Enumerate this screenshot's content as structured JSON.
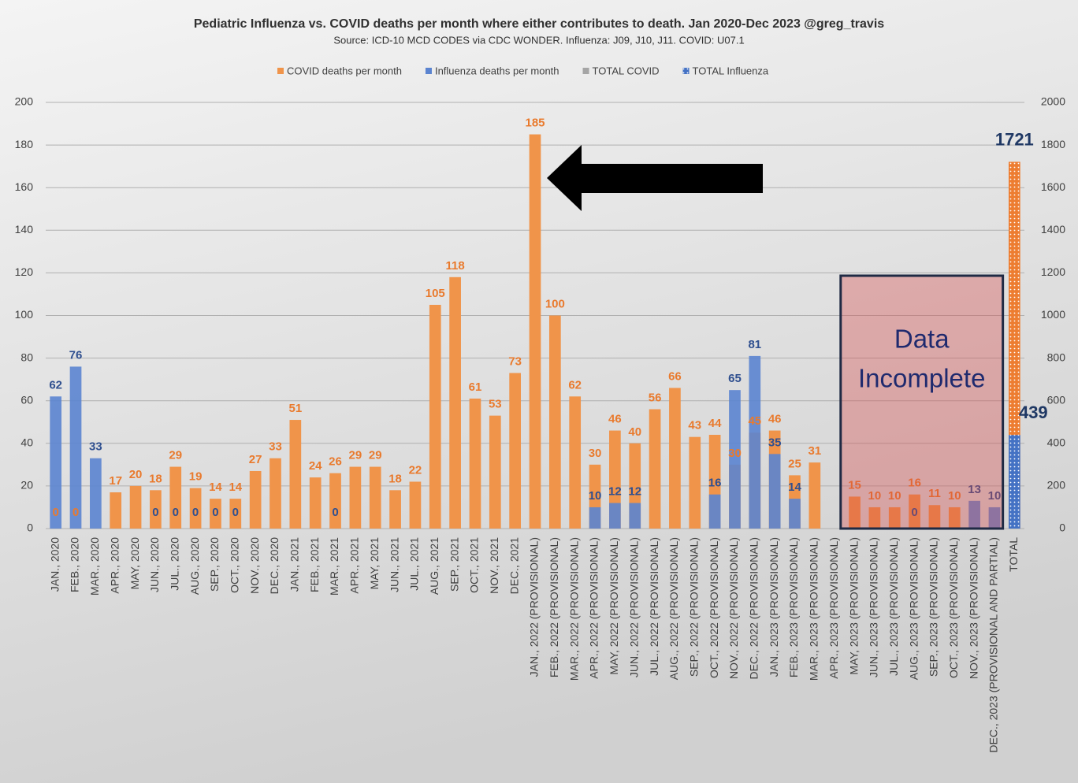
{
  "chart_data": {
    "type": "bar",
    "title": "Pediatric Influenza vs. COVID deaths per month where either contributes to death.  Jan 2020-Dec 2023 @greg_travis",
    "subtitle": "Source: ICD-10 MCD CODES via CDC WONDER.  Influenza: J09, J10, J11.  COVID: U07.1",
    "annotation": [
      "Data",
      "Incomplete"
    ],
    "categories": [
      "JAN., 2020",
      "FEB., 2020",
      "MAR., 2020",
      "APR., 2020",
      "MAY, 2020",
      "JUN., 2020",
      "JUL., 2020",
      "AUG., 2020",
      "SEP., 2020",
      "OCT., 2020",
      "NOV., 2020",
      "DEC., 2020",
      "JAN., 2021",
      "FEB., 2021",
      "MAR., 2021",
      "APR., 2021",
      "MAY, 2021",
      "JUN., 2021",
      "JUL., 2021",
      "AUG., 2021",
      "SEP., 2021",
      "OCT., 2021",
      "NOV., 2021",
      "DEC., 2021",
      "JAN., 2022 (PROVISIONAL)",
      "FEB., 2022 (PROVISIONAL)",
      "MAR., 2022 (PROVISIONAL)",
      "APR., 2022 (PROVISIONAL)",
      "MAY, 2022 (PROVISIONAL)",
      "JUN., 2022 (PROVISIONAL)",
      "JUL., 2022 (PROVISIONAL)",
      "AUG., 2022 (PROVISIONAL)",
      "SEP., 2022 (PROVISIONAL)",
      "OCT., 2022 (PROVISIONAL)",
      "NOV., 2022 (PROVISIONAL)",
      "DEC., 2022 (PROVISIONAL)",
      "JAN., 2023 (PROVISIONAL)",
      "FEB., 2023 (PROVISIONAL)",
      "MAR., 2023 (PROVISIONAL)",
      "APR., 2023 (PROVISIONAL)",
      "MAY, 2023 (PROVISIONAL)",
      "JUN., 2023 (PROVISIONAL)",
      "JUL., 2023 (PROVISIONAL)",
      "AUG., 2023 (PROVISIONAL)",
      "SEP., 2023 (PROVISIONAL)",
      "OCT., 2023 (PROVISIONAL)",
      "NOV., 2023 (PROVISIONAL)",
      "DEC., 2023 (PROVISIONAL AND PARTIAL)",
      "TOTAL"
    ],
    "series": [
      {
        "name": "COVID deaths per month",
        "color": "#f0944a",
        "label_color": "#e97a2d",
        "values": [
          0,
          0,
          null,
          17,
          20,
          18,
          29,
          19,
          14,
          14,
          27,
          33,
          51,
          24,
          26,
          29,
          29,
          18,
          22,
          105,
          118,
          61,
          53,
          73,
          185,
          100,
          62,
          30,
          46,
          40,
          56,
          66,
          43,
          44,
          30,
          45,
          46,
          25,
          31,
          null,
          15,
          10,
          10,
          16,
          11,
          10,
          null,
          null,
          null
        ]
      },
      {
        "name": "Influenza deaths per month",
        "color": "#5b84d0",
        "label_color": "#2f4f8f",
        "values": [
          62,
          76,
          33,
          null,
          null,
          0,
          0,
          0,
          0,
          0,
          null,
          null,
          null,
          null,
          0,
          null,
          null,
          null,
          null,
          null,
          null,
          null,
          null,
          null,
          null,
          null,
          null,
          10,
          12,
          12,
          null,
          null,
          null,
          16,
          65,
          81,
          35,
          14,
          null,
          null,
          null,
          null,
          null,
          0,
          null,
          null,
          13,
          10,
          null
        ]
      },
      {
        "name": "TOTAL COVID",
        "color": "#a5a5a5",
        "bar_color": "#ed7d31",
        "axis": "y2",
        "label_color": "#1f3864",
        "values": [
          null,
          null,
          null,
          null,
          null,
          null,
          null,
          null,
          null,
          null,
          null,
          null,
          null,
          null,
          null,
          null,
          null,
          null,
          null,
          null,
          null,
          null,
          null,
          null,
          null,
          null,
          null,
          null,
          null,
          null,
          null,
          null,
          null,
          null,
          null,
          null,
          null,
          null,
          null,
          null,
          null,
          null,
          null,
          null,
          null,
          null,
          null,
          null,
          1721
        ]
      },
      {
        "name": "TOTAL Influenza",
        "color": "#4472c4",
        "bar_color": "#4472c4",
        "axis": "y2",
        "label_color": "#1f3864",
        "values": [
          null,
          null,
          null,
          null,
          null,
          null,
          null,
          null,
          null,
          null,
          null,
          null,
          null,
          null,
          null,
          null,
          null,
          null,
          null,
          null,
          null,
          null,
          null,
          null,
          null,
          null,
          null,
          null,
          null,
          null,
          null,
          null,
          null,
          null,
          null,
          null,
          null,
          null,
          null,
          null,
          null,
          null,
          null,
          null,
          null,
          null,
          null,
          null,
          439
        ]
      }
    ],
    "ylim": [
      0,
      200
    ],
    "yticks": [
      0,
      20,
      40,
      60,
      80,
      100,
      120,
      140,
      160,
      180,
      200
    ],
    "y2lim": [
      0,
      2000
    ],
    "y2ticks": [
      0,
      200,
      400,
      600,
      800,
      1000,
      1200,
      1400,
      1600,
      1800,
      2000
    ],
    "grid": true,
    "legend": "top"
  }
}
